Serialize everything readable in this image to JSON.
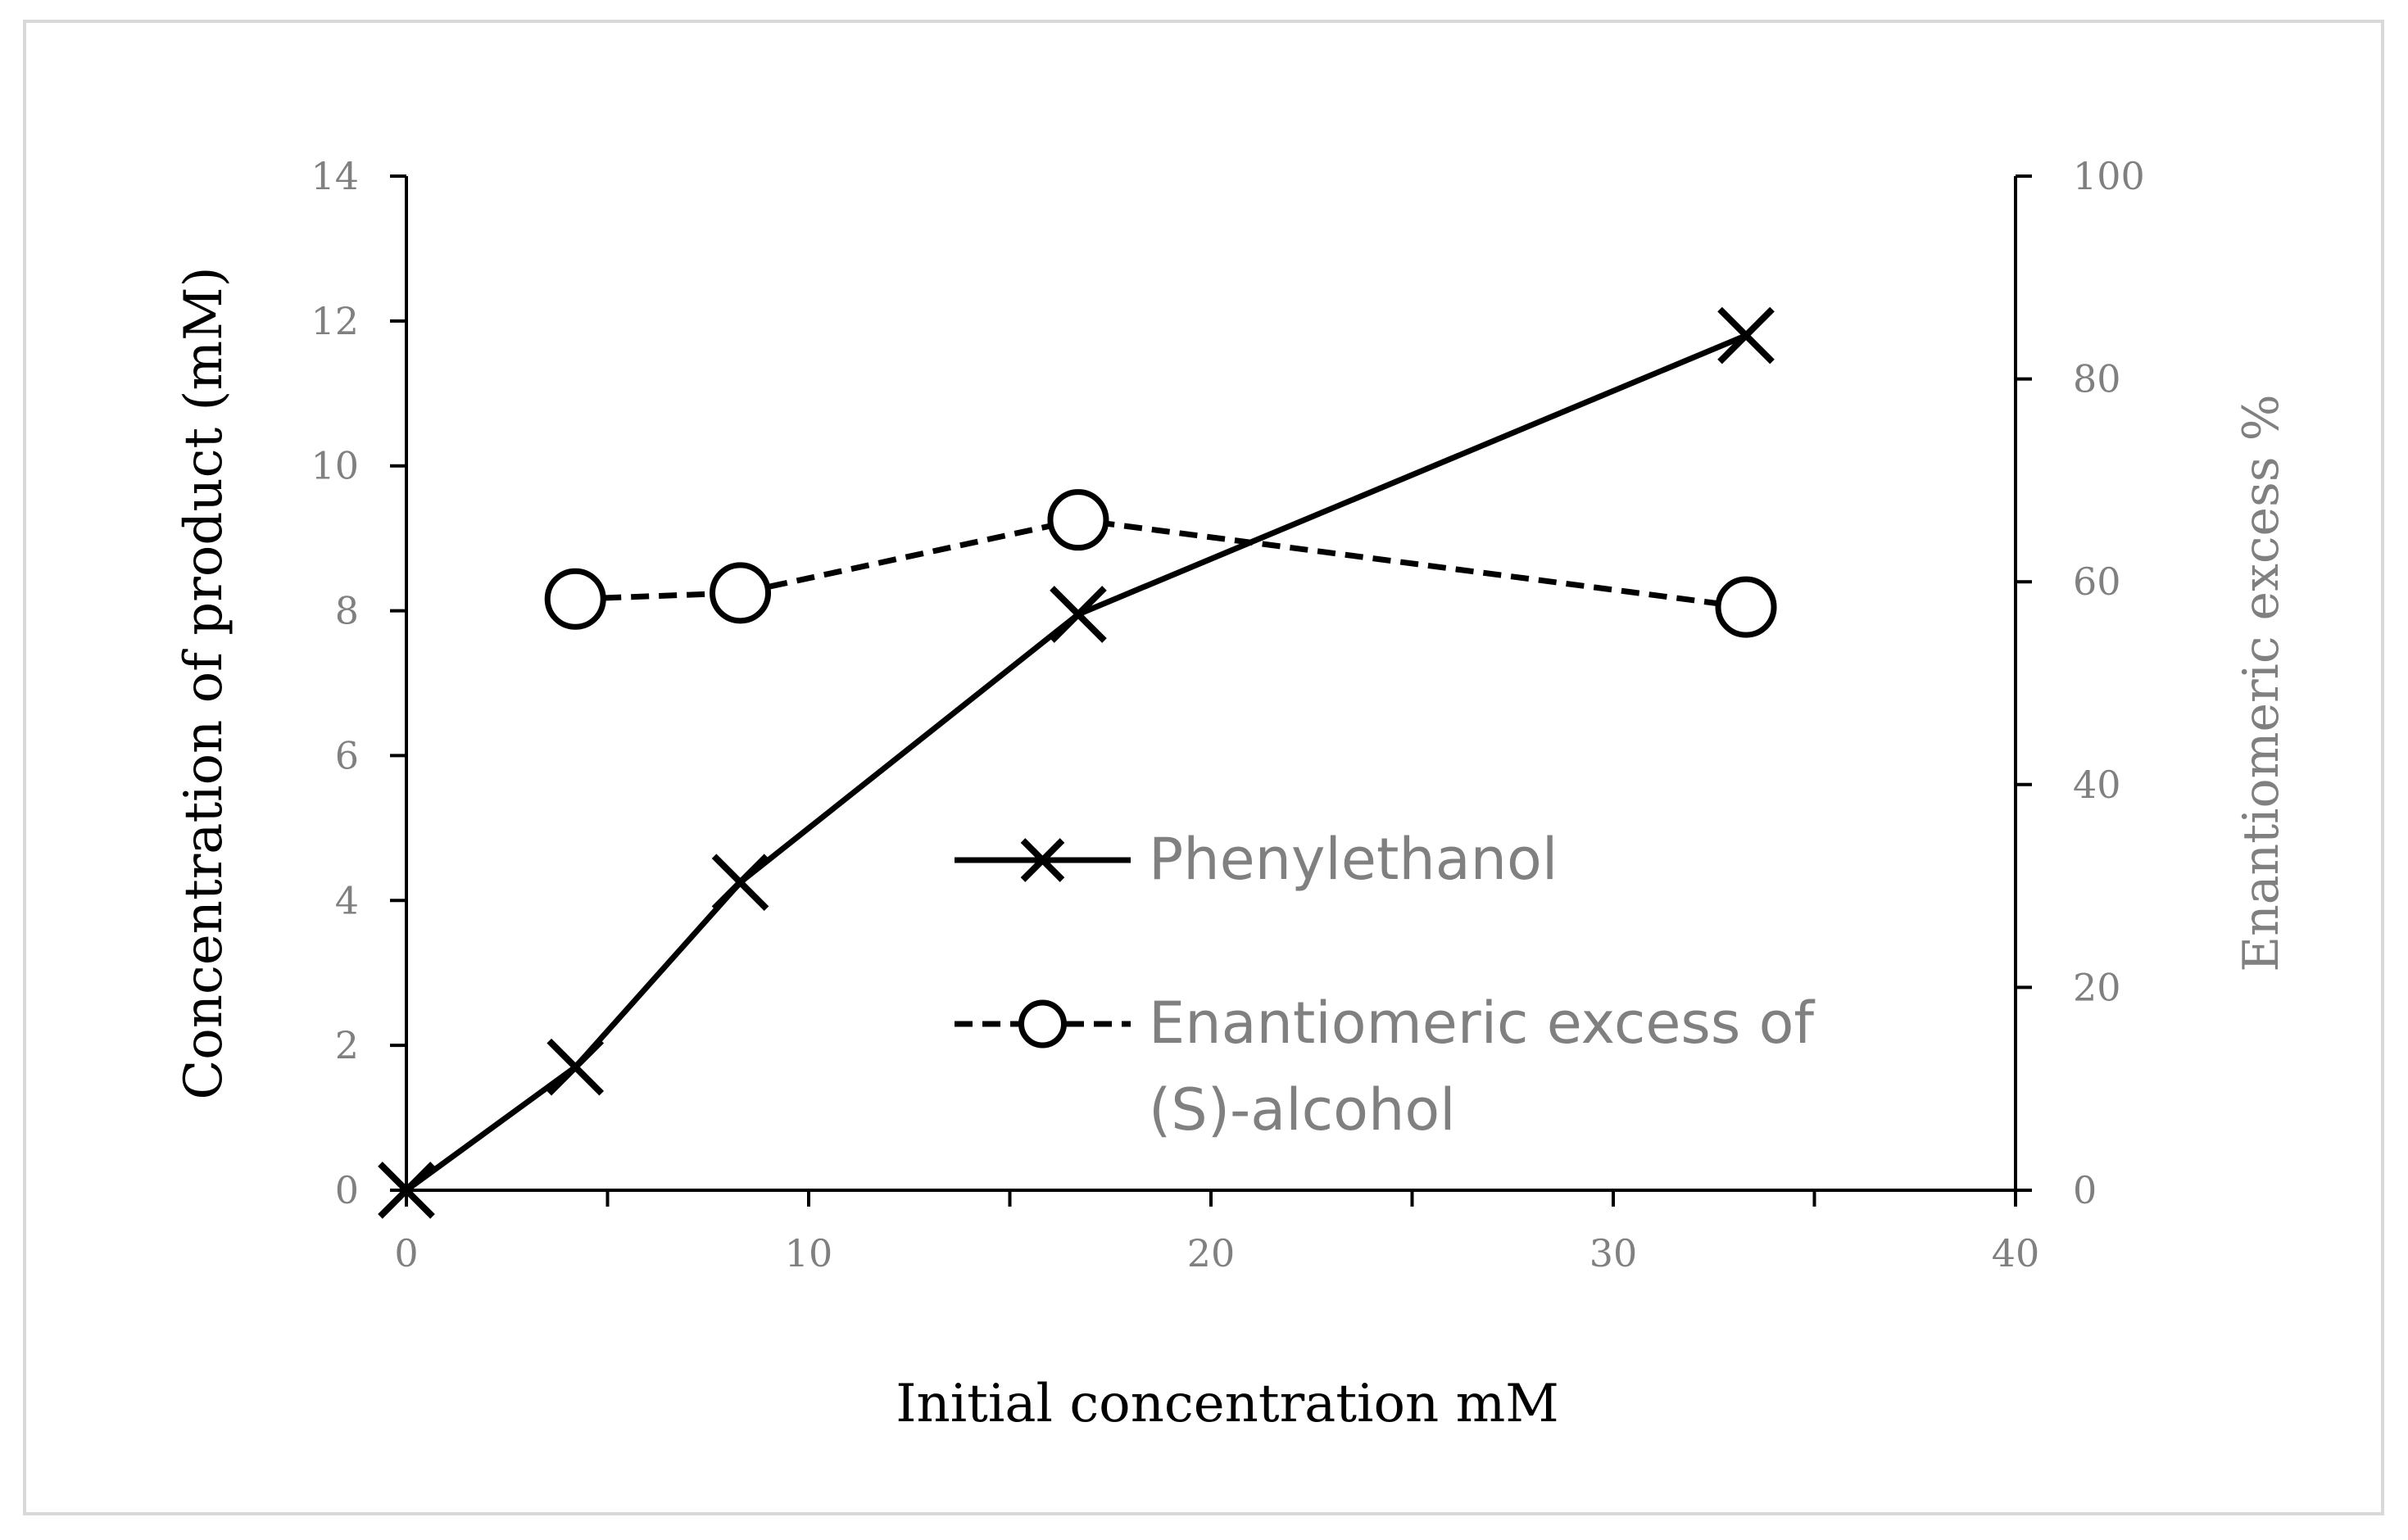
{
  "chart_data": {
    "type": "line",
    "title": "",
    "xlabel": "Initial concentration mM",
    "ylabel": "Concentration of product (mM)",
    "y2label": "Enantiomeric excess %",
    "xlim": [
      0,
      40
    ],
    "ylim": [
      0,
      14
    ],
    "y2lim": [
      0,
      100
    ],
    "xticks": [
      0,
      10,
      20,
      30,
      40
    ],
    "yticks": [
      0,
      2,
      4,
      6,
      8,
      10,
      12,
      14
    ],
    "y2ticks": [
      0,
      20,
      40,
      60,
      80,
      100
    ],
    "grid": false,
    "legend_position": "center",
    "series": [
      {
        "name": "Phenylethanol",
        "axis": "left",
        "style": "solid",
        "marker": "x",
        "x": [
          0,
          4.2,
          8.3,
          16.7,
          33.3
        ],
        "values": [
          0,
          1.7,
          4.25,
          7.95,
          11.8
        ]
      },
      {
        "name": "Enantiomeric excess of (S)-alcohol",
        "legend_lines": [
          "Enantiomeric excess of",
          "(S)-alcohol"
        ],
        "axis": "right",
        "style": "dashed",
        "marker": "circle",
        "x": [
          4.2,
          8.3,
          16.7,
          33.3
        ],
        "values": [
          58.3,
          58.9,
          66.1,
          57.5
        ]
      }
    ]
  }
}
